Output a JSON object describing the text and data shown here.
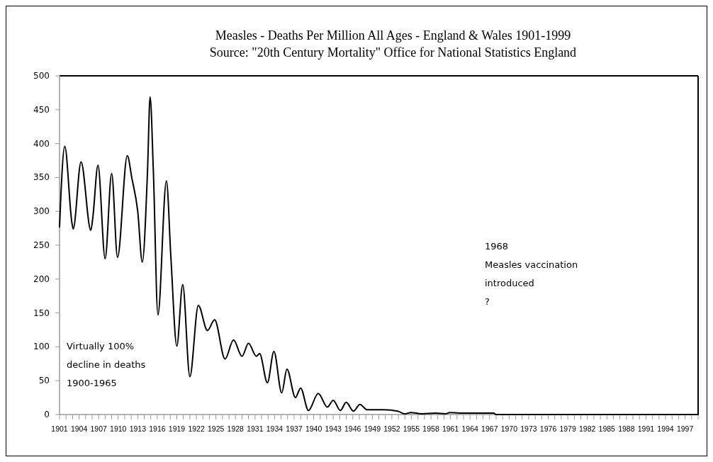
{
  "chart_data": {
    "type": "line",
    "title": "Measles - Deaths Per Million All Ages - England & Wales 1901-1999",
    "subtitle": "Source: \"20th Century Mortality\" Office for National Statistics England",
    "annotations": [
      "Virtually 100%\ndecline in deaths\n1900-1965",
      "1968\nMeasles vaccination\nintroduced\n?"
    ],
    "series": [
      {
        "color": "#000000",
        "x": [
          1901.0,
          1901.1,
          1901.8,
          1902.9,
          1903.1,
          1904.3,
          1905.8,
          1906.1,
          1906.9,
          1908.0,
          1909.0,
          1909.9,
          1911.4,
          1912.1,
          1913.0,
          1913.7,
          1914.5,
          1914.9,
          1915.4,
          1916.1,
          1917.4,
          1918.1,
          1919.0,
          1919.9,
          1921.0,
          1922.3,
          1923.7,
          1924.8,
          1926.4,
          1927.7,
          1929.0,
          1930.0,
          1931.2,
          1931.7,
          1932.9,
          1933.9,
          1935.1,
          1935.9,
          1937.2,
          1938.0,
          1939.2,
          1940.7,
          1942.1,
          1943.0,
          1944.1,
          1945.0,
          1946.1,
          1947.1,
          1948.2,
          1949.7,
          1950.8,
          1952.9,
          1954.0,
          1954.9,
          1956.6,
          1958.7,
          1960.2,
          1960.9,
          1962.4,
          1967.6,
          1968.0,
          1999.0
        ],
        "values": [
          277,
          300,
          396,
          283,
          274,
          373,
          272,
          290,
          368,
          230,
          356,
          232,
          382,
          349,
          300,
          225,
          359,
          469,
          359,
          147,
          345,
          230,
          101,
          192,
          56,
          161,
          124,
          140,
          82,
          110,
          86,
          105,
          86,
          90,
          47,
          93,
          32,
          67,
          25,
          39,
          6,
          31,
          11,
          21,
          6,
          18,
          5,
          15,
          7,
          7,
          7,
          5,
          1,
          3,
          1,
          2,
          1,
          3,
          2,
          2,
          0,
          0
        ]
      }
    ],
    "ylim": [
      0,
      500
    ],
    "yticks": [
      0,
      50,
      100,
      150,
      200,
      250,
      300,
      350,
      400,
      450,
      500
    ],
    "xlim": [
      1901,
      1999
    ],
    "xticks": [
      {
        "value": 1901,
        "label": "1901"
      },
      {
        "value": 1902,
        "label": null
      },
      {
        "value": 1903,
        "label": null
      },
      {
        "value": 1904,
        "label": "1904"
      },
      {
        "value": 1905,
        "label": null
      },
      {
        "value": 1906,
        "label": null
      },
      {
        "value": 1907,
        "label": "1907"
      },
      {
        "value": 1908,
        "label": null
      },
      {
        "value": 1909,
        "label": null
      },
      {
        "value": 1910,
        "label": "1910"
      },
      {
        "value": 1911,
        "label": null
      },
      {
        "value": 1912,
        "label": null
      },
      {
        "value": 1913,
        "label": "1913"
      },
      {
        "value": 1914,
        "label": null
      },
      {
        "value": 1915,
        "label": null
      },
      {
        "value": 1916,
        "label": "1916"
      },
      {
        "value": 1917,
        "label": null
      },
      {
        "value": 1918,
        "label": null
      },
      {
        "value": 1919,
        "label": "1919"
      },
      {
        "value": 1920,
        "label": null
      },
      {
        "value": 1921,
        "label": null
      },
      {
        "value": 1922,
        "label": "1922"
      },
      {
        "value": 1923,
        "label": null
      },
      {
        "value": 1924,
        "label": null
      },
      {
        "value": 1925,
        "label": "1925"
      },
      {
        "value": 1926,
        "label": null
      },
      {
        "value": 1927,
        "label": null
      },
      {
        "value": 1928,
        "label": "1928"
      },
      {
        "value": 1929,
        "label": null
      },
      {
        "value": 1930,
        "label": null
      },
      {
        "value": 1931,
        "label": "1931"
      },
      {
        "value": 1932,
        "label": null
      },
      {
        "value": 1933,
        "label": null
      },
      {
        "value": 1934,
        "label": "1934"
      },
      {
        "value": 1935,
        "label": null
      },
      {
        "value": 1936,
        "label": null
      },
      {
        "value": 1937,
        "label": "1937"
      },
      {
        "value": 1938,
        "label": null
      },
      {
        "value": 1939,
        "label": null
      },
      {
        "value": 1940,
        "label": "1940"
      },
      {
        "value": 1941,
        "label": null
      },
      {
        "value": 1942,
        "label": null
      },
      {
        "value": 1943,
        "label": "1943"
      },
      {
        "value": 1944,
        "label": null
      },
      {
        "value": 1945,
        "label": null
      },
      {
        "value": 1946,
        "label": "1946"
      },
      {
        "value": 1947,
        "label": null
      },
      {
        "value": 1948,
        "label": null
      },
      {
        "value": 1949,
        "label": "1949"
      },
      {
        "value": 1950,
        "label": null
      },
      {
        "value": 1951,
        "label": null
      },
      {
        "value": 1952,
        "label": "1952"
      },
      {
        "value": 1953,
        "label": null
      },
      {
        "value": 1954,
        "label": null
      },
      {
        "value": 1955,
        "label": "1955"
      },
      {
        "value": 1956,
        "label": null
      },
      {
        "value": 1957,
        "label": null
      },
      {
        "value": 1958,
        "label": "1958"
      },
      {
        "value": 1959,
        "label": null
      },
      {
        "value": 1960,
        "label": null
      },
      {
        "value": 1961,
        "label": "1961"
      },
      {
        "value": 1962,
        "label": null
      },
      {
        "value": 1963,
        "label": null
      },
      {
        "value": 1964,
        "label": "1964"
      },
      {
        "value": 1965,
        "label": null
      },
      {
        "value": 1966,
        "label": null
      },
      {
        "value": 1967,
        "label": "1967"
      },
      {
        "value": 1968,
        "label": null
      },
      {
        "value": 1969,
        "label": null
      },
      {
        "value": 1970,
        "label": "1970"
      },
      {
        "value": 1971,
        "label": null
      },
      {
        "value": 1972,
        "label": null
      },
      {
        "value": 1973,
        "label": "1973"
      },
      {
        "value": 1974,
        "label": null
      },
      {
        "value": 1975,
        "label": null
      },
      {
        "value": 1976,
        "label": "1976"
      },
      {
        "value": 1977,
        "label": null
      },
      {
        "value": 1978,
        "label": null
      },
      {
        "value": 1979,
        "label": "1979"
      },
      {
        "value": 1980,
        "label": null
      },
      {
        "value": 1981,
        "label": null
      },
      {
        "value": 1982,
        "label": "1982"
      },
      {
        "value": 1983,
        "label": null
      },
      {
        "value": 1984,
        "label": null
      },
      {
        "value": 1985,
        "label": "1985"
      },
      {
        "value": 1986,
        "label": null
      },
      {
        "value": 1987,
        "label": null
      },
      {
        "value": 1988,
        "label": "1988"
      },
      {
        "value": 1989,
        "label": null
      },
      {
        "value": 1990,
        "label": null
      },
      {
        "value": 1991,
        "label": "1991"
      },
      {
        "value": 1992,
        "label": null
      },
      {
        "value": 1993,
        "label": null
      },
      {
        "value": 1994,
        "label": "1994"
      },
      {
        "value": 1995,
        "label": null
      },
      {
        "value": 1996,
        "label": null
      },
      {
        "value": 1997,
        "label": "1997"
      },
      {
        "value": 1998,
        "label": null
      },
      {
        "value": 1999,
        "label": null
      }
    ],
    "grid": false,
    "marker": "none",
    "line_style": "solid"
  }
}
